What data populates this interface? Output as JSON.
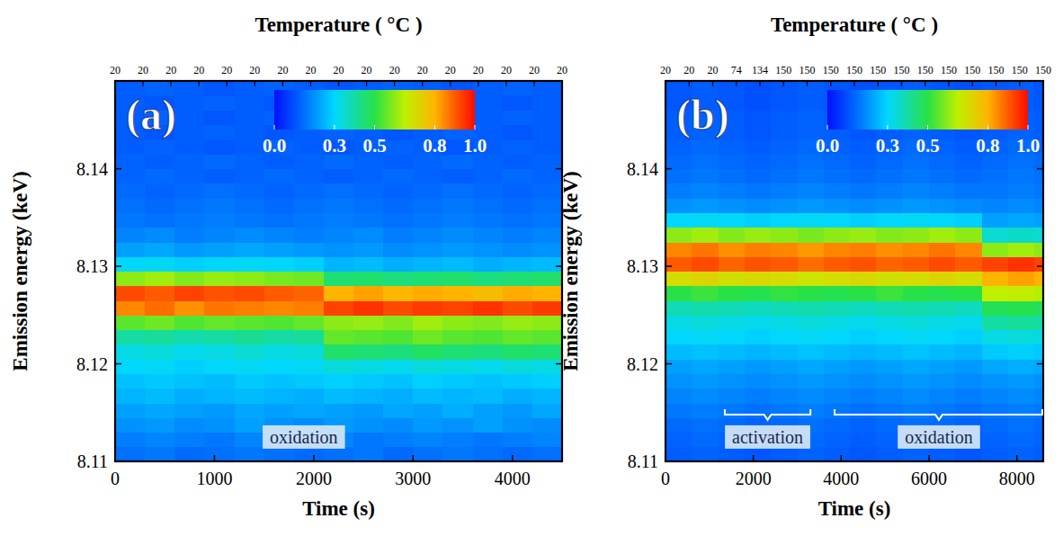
{
  "chart_data": [
    {
      "type": "heatmap",
      "panel": "(a)",
      "x_label": "Time (s)",
      "y_label": "Emission energy (keV)",
      "x2_label": "Temperature ( °C )",
      "xlim": [
        0,
        4500
      ],
      "xticks": [
        0,
        1000,
        2000,
        3000,
        4000
      ],
      "ylim": [
        8.11,
        8.149
      ],
      "yticks": [
        8.11,
        8.12,
        8.13,
        8.14
      ],
      "x2lim": [
        0,
        4500
      ],
      "x2ticks": [
        {
          "value": 0,
          "label": "20"
        },
        {
          "value": 281.25,
          "label": "20"
        },
        {
          "value": 562.5,
          "label": "20"
        },
        {
          "value": 843.75,
          "label": "20"
        },
        {
          "value": 1125,
          "label": "20"
        },
        {
          "value": 1406.25,
          "label": "20"
        },
        {
          "value": 1687.5,
          "label": "20"
        },
        {
          "value": 1968.75,
          "label": "20"
        },
        {
          "value": 2250,
          "label": "20"
        },
        {
          "value": 2531.25,
          "label": "20"
        },
        {
          "value": 2812.5,
          "label": "20"
        },
        {
          "value": 3093.75,
          "label": "20"
        },
        {
          "value": 3375,
          "label": "20"
        },
        {
          "value": 3656.25,
          "label": "20"
        },
        {
          "value": 3937.5,
          "label": "20"
        },
        {
          "value": 4218.75,
          "label": "20"
        },
        {
          "value": 4500,
          "label": "20"
        }
      ],
      "x_edges": [
        0,
        300,
        600,
        900,
        1200,
        1500,
        1800,
        2100,
        2400,
        2700,
        3000,
        3300,
        3600,
        3900,
        4200,
        4500
      ],
      "y_edges": [
        8.11,
        8.1115,
        8.113,
        8.1145,
        8.116,
        8.1175,
        8.119,
        8.1205,
        8.122,
        8.1235,
        8.125,
        8.1265,
        8.128,
        8.1295,
        8.131,
        8.1325,
        8.134,
        8.1355,
        8.137,
        8.1385,
        8.14,
        8.1415,
        8.143,
        8.1445,
        8.146,
        8.1475,
        8.149
      ],
      "z": [
        [
          0.15,
          0.16,
          0.14,
          0.15,
          0.16,
          0.15,
          0.14,
          0.15,
          0.16,
          0.14,
          0.15,
          0.16,
          0.15,
          0.14,
          0.15
        ],
        [
          0.17,
          0.18,
          0.17,
          0.16,
          0.18,
          0.17,
          0.17,
          0.18,
          0.16,
          0.17,
          0.18,
          0.17,
          0.16,
          0.17,
          0.18
        ],
        [
          0.2,
          0.21,
          0.19,
          0.2,
          0.22,
          0.2,
          0.19,
          0.21,
          0.2,
          0.19,
          0.21,
          0.2,
          0.22,
          0.2,
          0.19
        ],
        [
          0.22,
          0.23,
          0.22,
          0.21,
          0.23,
          0.22,
          0.23,
          0.22,
          0.21,
          0.23,
          0.22,
          0.24,
          0.22,
          0.21,
          0.23
        ],
        [
          0.25,
          0.26,
          0.24,
          0.25,
          0.26,
          0.25,
          0.24,
          0.26,
          0.25,
          0.24,
          0.26,
          0.25,
          0.26,
          0.24,
          0.25
        ],
        [
          0.27,
          0.28,
          0.27,
          0.26,
          0.28,
          0.27,
          0.28,
          0.29,
          0.28,
          0.27,
          0.29,
          0.28,
          0.27,
          0.28,
          0.29
        ],
        [
          0.3,
          0.31,
          0.29,
          0.3,
          0.31,
          0.3,
          0.31,
          0.34,
          0.33,
          0.32,
          0.34,
          0.33,
          0.32,
          0.34,
          0.33
        ],
        [
          0.33,
          0.34,
          0.32,
          0.33,
          0.35,
          0.33,
          0.34,
          0.46,
          0.45,
          0.44,
          0.47,
          0.45,
          0.44,
          0.46,
          0.45
        ],
        [
          0.4,
          0.41,
          0.39,
          0.4,
          0.42,
          0.4,
          0.41,
          0.56,
          0.55,
          0.54,
          0.57,
          0.55,
          0.54,
          0.56,
          0.55
        ],
        [
          0.55,
          0.57,
          0.54,
          0.56,
          0.55,
          0.54,
          0.56,
          0.6,
          0.61,
          0.59,
          0.62,
          0.6,
          0.59,
          0.61,
          0.6
        ],
        [
          0.85,
          0.88,
          0.84,
          0.87,
          0.86,
          0.85,
          0.86,
          0.93,
          0.95,
          0.92,
          0.94,
          0.93,
          0.95,
          0.92,
          0.94
        ],
        [
          0.92,
          0.9,
          0.93,
          0.91,
          0.92,
          0.9,
          0.89,
          0.8,
          0.82,
          0.79,
          0.81,
          0.8,
          0.78,
          0.81,
          0.8
        ],
        [
          0.6,
          0.62,
          0.59,
          0.61,
          0.6,
          0.58,
          0.57,
          0.45,
          0.46,
          0.44,
          0.45,
          0.46,
          0.44,
          0.45,
          0.46
        ],
        [
          0.3,
          0.31,
          0.29,
          0.3,
          0.31,
          0.3,
          0.29,
          0.25,
          0.26,
          0.24,
          0.25,
          0.26,
          0.24,
          0.25,
          0.26
        ],
        [
          0.22,
          0.23,
          0.21,
          0.22,
          0.23,
          0.22,
          0.21,
          0.2,
          0.21,
          0.19,
          0.2,
          0.21,
          0.2,
          0.19,
          0.2
        ],
        [
          0.18,
          0.19,
          0.17,
          0.18,
          0.19,
          0.18,
          0.17,
          0.18,
          0.19,
          0.17,
          0.18,
          0.19,
          0.18,
          0.17,
          0.18
        ],
        [
          0.16,
          0.15,
          0.16,
          0.17,
          0.16,
          0.15,
          0.16,
          0.17,
          0.16,
          0.15,
          0.16,
          0.17,
          0.16,
          0.15,
          0.16
        ],
        [
          0.15,
          0.14,
          0.15,
          0.16,
          0.15,
          0.14,
          0.15,
          0.16,
          0.15,
          0.14,
          0.15,
          0.16,
          0.15,
          0.14,
          0.15
        ],
        [
          0.14,
          0.13,
          0.14,
          0.15,
          0.14,
          0.13,
          0.14,
          0.15,
          0.14,
          0.13,
          0.14,
          0.15,
          0.14,
          0.13,
          0.14
        ],
        [
          0.13,
          0.14,
          0.13,
          0.12,
          0.13,
          0.14,
          0.13,
          0.12,
          0.13,
          0.14,
          0.13,
          0.12,
          0.13,
          0.14,
          0.13
        ],
        [
          0.13,
          0.12,
          0.13,
          0.14,
          0.13,
          0.12,
          0.13,
          0.14,
          0.13,
          0.12,
          0.13,
          0.14,
          0.13,
          0.12,
          0.13
        ],
        [
          0.12,
          0.13,
          0.12,
          0.11,
          0.12,
          0.13,
          0.12,
          0.11,
          0.12,
          0.13,
          0.12,
          0.11,
          0.12,
          0.13,
          0.12
        ],
        [
          0.12,
          0.11,
          0.12,
          0.13,
          0.12,
          0.11,
          0.12,
          0.13,
          0.12,
          0.11,
          0.12,
          0.13,
          0.12,
          0.11,
          0.12
        ],
        [
          0.12,
          0.13,
          0.12,
          0.11,
          0.12,
          0.13,
          0.12,
          0.11,
          0.12,
          0.13,
          0.12,
          0.11,
          0.12,
          0.13,
          0.12
        ],
        [
          0.12,
          0.11,
          0.12,
          0.13,
          0.12,
          0.11,
          0.12,
          0.13,
          0.12,
          0.11,
          0.12,
          0.13,
          0.12,
          0.11,
          0.12
        ],
        [
          0.12,
          0.13,
          0.12,
          0.11,
          0.12,
          0.13,
          0.12,
          0.11,
          0.12,
          0.13,
          0.12,
          0.11,
          0.12,
          0.13,
          0.12
        ]
      ],
      "colorbar": {
        "range": [
          0,
          1
        ],
        "ticks": [
          {
            "value": 0,
            "label": "0.0"
          },
          0.3,
          0.5,
          0.8,
          {
            "value": 1,
            "label": "1.0"
          }
        ]
      },
      "annotations": [
        {
          "text": "oxidation",
          "x": 1900,
          "y": 8.1125
        }
      ]
    },
    {
      "type": "heatmap",
      "panel": "(b)",
      "x_label": "Time (s)",
      "y_label": "Emission energy (keV)",
      "x2_label": "Temperature ( °C )",
      "xlim": [
        0,
        8600
      ],
      "xticks": [
        0,
        2000,
        4000,
        6000,
        8000
      ],
      "ylim": [
        8.11,
        8.149
      ],
      "yticks": [
        8.11,
        8.12,
        8.13,
        8.14
      ],
      "x2lim": [
        0,
        8600
      ],
      "x2ticks": [
        {
          "value": 0,
          "label": "20"
        },
        {
          "value": 537.5,
          "label": "20"
        },
        {
          "value": 1075,
          "label": "20"
        },
        {
          "value": 1612.5,
          "label": "74"
        },
        {
          "value": 2150,
          "label": "134"
        },
        {
          "value": 2687.5,
          "label": "150"
        },
        {
          "value": 3225,
          "label": "150"
        },
        {
          "value": 3762.5,
          "label": "150"
        },
        {
          "value": 4300,
          "label": "150"
        },
        {
          "value": 4837.5,
          "label": "150"
        },
        {
          "value": 5375,
          "label": "150"
        },
        {
          "value": 5912.5,
          "label": "150"
        },
        {
          "value": 6450,
          "label": "150"
        },
        {
          "value": 6987.5,
          "label": "150"
        },
        {
          "value": 7525,
          "label": "150"
        },
        {
          "value": 8062.5,
          "label": "150"
        },
        {
          "value": 8600,
          "label": "150"
        }
      ],
      "x_edges": [
        0,
        600,
        1200,
        1800,
        2400,
        3000,
        3600,
        4200,
        4800,
        5400,
        6000,
        6600,
        7200,
        7800,
        8400,
        8600
      ],
      "y_edges": [
        8.11,
        8.1115,
        8.113,
        8.1145,
        8.116,
        8.1175,
        8.119,
        8.1205,
        8.122,
        8.1235,
        8.125,
        8.1265,
        8.128,
        8.1295,
        8.131,
        8.1325,
        8.134,
        8.1355,
        8.137,
        8.1385,
        8.14,
        8.1415,
        8.143,
        8.1445,
        8.146,
        8.1475,
        8.149
      ],
      "z": [
        [
          0.12,
          0.13,
          0.12,
          0.11,
          0.12,
          0.13,
          0.12,
          0.11,
          0.12,
          0.13,
          0.12,
          0.11,
          0.12,
          0.13,
          0.12
        ],
        [
          0.13,
          0.14,
          0.13,
          0.12,
          0.13,
          0.14,
          0.13,
          0.12,
          0.13,
          0.14,
          0.13,
          0.12,
          0.13,
          0.14,
          0.13
        ],
        [
          0.14,
          0.15,
          0.14,
          0.13,
          0.14,
          0.15,
          0.14,
          0.13,
          0.14,
          0.15,
          0.14,
          0.13,
          0.14,
          0.15,
          0.14
        ],
        [
          0.16,
          0.17,
          0.16,
          0.15,
          0.16,
          0.17,
          0.16,
          0.15,
          0.16,
          0.17,
          0.16,
          0.15,
          0.16,
          0.17,
          0.16
        ],
        [
          0.18,
          0.19,
          0.18,
          0.17,
          0.18,
          0.19,
          0.18,
          0.17,
          0.18,
          0.19,
          0.18,
          0.17,
          0.18,
          0.19,
          0.18
        ],
        [
          0.2,
          0.21,
          0.2,
          0.19,
          0.2,
          0.21,
          0.2,
          0.19,
          0.2,
          0.21,
          0.2,
          0.19,
          0.2,
          0.21,
          0.2
        ],
        [
          0.22,
          0.23,
          0.22,
          0.21,
          0.22,
          0.23,
          0.22,
          0.21,
          0.22,
          0.23,
          0.22,
          0.21,
          0.23,
          0.24,
          0.23
        ],
        [
          0.26,
          0.27,
          0.26,
          0.25,
          0.26,
          0.27,
          0.26,
          0.25,
          0.26,
          0.27,
          0.26,
          0.25,
          0.28,
          0.29,
          0.28
        ],
        [
          0.3,
          0.31,
          0.3,
          0.29,
          0.3,
          0.31,
          0.3,
          0.29,
          0.3,
          0.31,
          0.3,
          0.29,
          0.33,
          0.34,
          0.33
        ],
        [
          0.33,
          0.34,
          0.33,
          0.32,
          0.33,
          0.34,
          0.33,
          0.32,
          0.33,
          0.34,
          0.33,
          0.32,
          0.4,
          0.41,
          0.4
        ],
        [
          0.38,
          0.39,
          0.38,
          0.37,
          0.38,
          0.39,
          0.38,
          0.37,
          0.38,
          0.39,
          0.38,
          0.37,
          0.48,
          0.49,
          0.48
        ],
        [
          0.5,
          0.52,
          0.5,
          0.49,
          0.51,
          0.5,
          0.49,
          0.5,
          0.52,
          0.5,
          0.49,
          0.5,
          0.65,
          0.66,
          0.64
        ],
        [
          0.7,
          0.72,
          0.69,
          0.71,
          0.7,
          0.68,
          0.7,
          0.71,
          0.69,
          0.7,
          0.72,
          0.7,
          0.8,
          0.82,
          0.8
        ],
        [
          0.9,
          0.92,
          0.89,
          0.91,
          0.9,
          0.88,
          0.9,
          0.91,
          0.89,
          0.9,
          0.92,
          0.9,
          0.93,
          0.95,
          0.93
        ],
        [
          0.85,
          0.87,
          0.84,
          0.86,
          0.85,
          0.83,
          0.85,
          0.86,
          0.84,
          0.85,
          0.87,
          0.85,
          0.6,
          0.62,
          0.6
        ],
        [
          0.6,
          0.62,
          0.59,
          0.61,
          0.6,
          0.58,
          0.6,
          0.61,
          0.59,
          0.6,
          0.62,
          0.6,
          0.35,
          0.36,
          0.35
        ],
        [
          0.3,
          0.31,
          0.3,
          0.29,
          0.3,
          0.31,
          0.3,
          0.29,
          0.3,
          0.31,
          0.3,
          0.29,
          0.22,
          0.23,
          0.22
        ],
        [
          0.2,
          0.21,
          0.2,
          0.19,
          0.2,
          0.21,
          0.2,
          0.19,
          0.2,
          0.21,
          0.2,
          0.19,
          0.18,
          0.19,
          0.18
        ],
        [
          0.17,
          0.18,
          0.17,
          0.16,
          0.17,
          0.18,
          0.17,
          0.16,
          0.17,
          0.18,
          0.17,
          0.16,
          0.16,
          0.17,
          0.16
        ],
        [
          0.15,
          0.16,
          0.15,
          0.14,
          0.15,
          0.16,
          0.15,
          0.14,
          0.15,
          0.16,
          0.15,
          0.14,
          0.15,
          0.16,
          0.15
        ],
        [
          0.14,
          0.15,
          0.14,
          0.13,
          0.14,
          0.15,
          0.14,
          0.13,
          0.14,
          0.15,
          0.14,
          0.13,
          0.14,
          0.15,
          0.14
        ],
        [
          0.13,
          0.14,
          0.13,
          0.12,
          0.13,
          0.14,
          0.13,
          0.12,
          0.13,
          0.14,
          0.13,
          0.12,
          0.13,
          0.14,
          0.13
        ],
        [
          0.12,
          0.13,
          0.12,
          0.11,
          0.12,
          0.13,
          0.12,
          0.11,
          0.12,
          0.13,
          0.12,
          0.11,
          0.12,
          0.13,
          0.12
        ],
        [
          0.12,
          0.13,
          0.12,
          0.11,
          0.12,
          0.13,
          0.12,
          0.11,
          0.12,
          0.13,
          0.12,
          0.11,
          0.12,
          0.13,
          0.12
        ],
        [
          0.11,
          0.12,
          0.11,
          0.1,
          0.11,
          0.12,
          0.11,
          0.1,
          0.11,
          0.12,
          0.11,
          0.1,
          0.11,
          0.12,
          0.11
        ],
        [
          0.11,
          0.12,
          0.11,
          0.1,
          0.11,
          0.12,
          0.11,
          0.1,
          0.11,
          0.12,
          0.11,
          0.1,
          0.11,
          0.12,
          0.11
        ]
      ],
      "colorbar": {
        "range": [
          0,
          1
        ],
        "ticks": [
          {
            "value": 0,
            "label": "0.0"
          },
          0.3,
          0.5,
          0.8,
          {
            "value": 1,
            "label": "1.0"
          }
        ]
      },
      "annotations": [
        {
          "text": "activation",
          "span": [
            1350,
            3300
          ],
          "y": 8.1125
        },
        {
          "text": "oxidation",
          "span": [
            3850,
            8600
          ],
          "y": 8.1125
        }
      ]
    }
  ]
}
